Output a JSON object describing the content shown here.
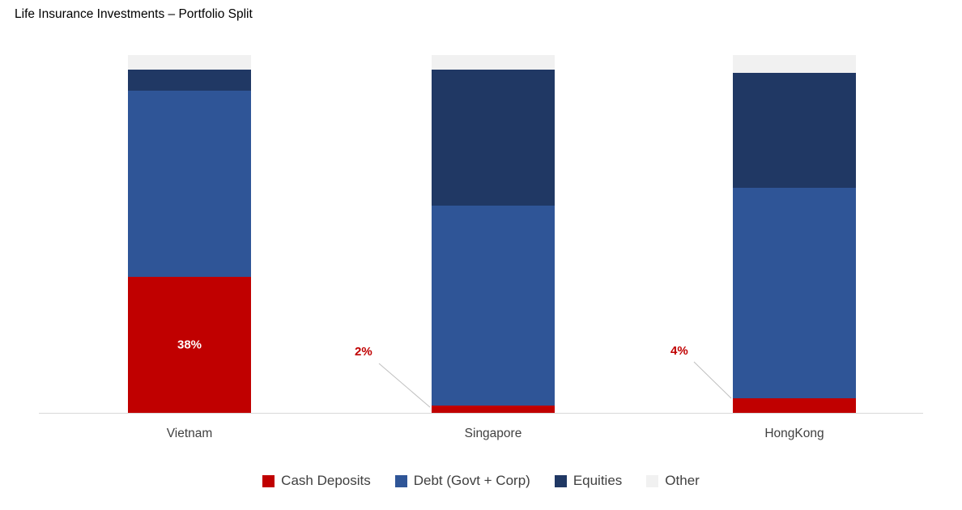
{
  "title": "Life Insurance Investments – Portfolio Split",
  "chart_data": {
    "type": "bar",
    "stacked": true,
    "title": "Life Insurance Investments – Portfolio Split",
    "categories": [
      "Vietnam",
      "Singapore",
      "HongKong"
    ],
    "series": [
      {
        "name": "Cash Deposits",
        "color": "#C00000",
        "values": [
          38,
          2,
          4
        ]
      },
      {
        "name": "Debt (Govt + Corp)",
        "color": "#2F5597",
        "values": [
          52,
          56,
          59
        ]
      },
      {
        "name": "Equities",
        "color": "#203864",
        "values": [
          6,
          38,
          32
        ]
      },
      {
        "name": "Other",
        "color": "#F1F1F1",
        "values": [
          4,
          4,
          5
        ]
      }
    ],
    "ylim": [
      0,
      100
    ],
    "unit": "%",
    "grid": false,
    "legend_position": "bottom",
    "data_labels": [
      {
        "category": "Vietnam",
        "series": "Cash Deposits",
        "text": "38%",
        "style": "inside-white"
      },
      {
        "category": "Singapore",
        "series": "Cash Deposits",
        "text": "2%",
        "style": "callout-red"
      },
      {
        "category": "HongKong",
        "series": "Cash Deposits",
        "text": "4%",
        "style": "callout-red"
      }
    ]
  },
  "colors": {
    "axis_line": "#D9D9D9",
    "leader_line": "#BFBFBF",
    "callout_text": "#C00000",
    "category_text": "#404040",
    "legend_text": "#404040",
    "title_text": "#000000"
  }
}
